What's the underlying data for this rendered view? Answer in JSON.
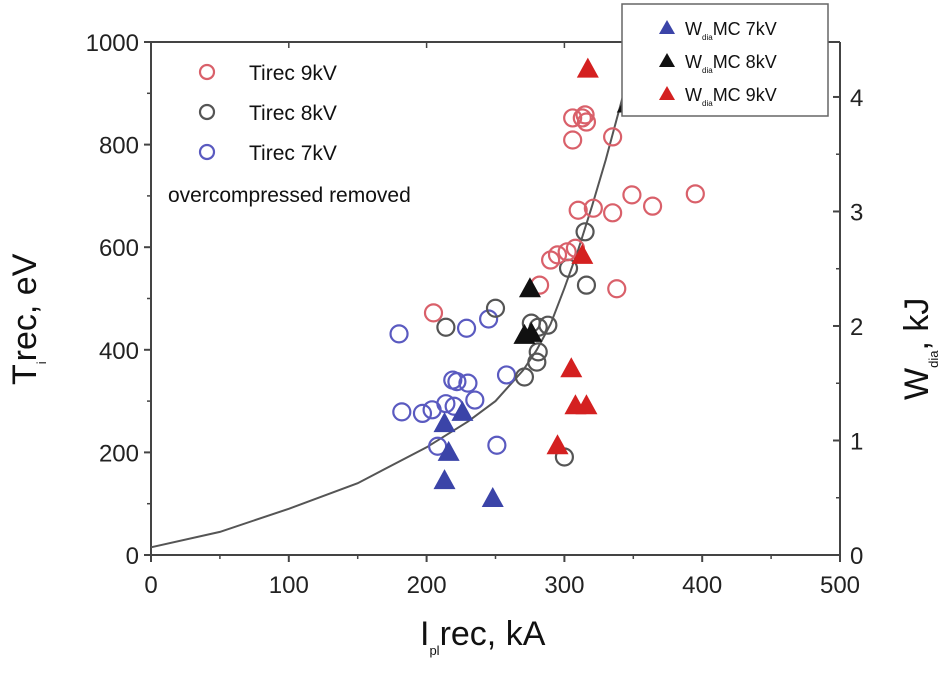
{
  "chart_data": {
    "type": "scatter",
    "xlabel": "I",
    "xlabel_sub": "pl",
    "xlabel_rest": "rec, kA",
    "ylabel": "T",
    "ylabel_sub": "i",
    "ylabel_rest": "rec, eV",
    "y2label": "W",
    "y2label_sub": "dia",
    "y2label_rest": ", kJ",
    "xlim": [
      0,
      500
    ],
    "ylim": [
      0,
      1000
    ],
    "y2lim": [
      0,
      4.48
    ],
    "xticks": [
      0,
      100,
      200,
      300,
      400,
      500
    ],
    "yticks": [
      0,
      200,
      400,
      600,
      800,
      1000
    ],
    "y2ticks": [
      0,
      1,
      2,
      3,
      4
    ],
    "grid": false,
    "legend_left": {
      "placement": "top-left",
      "entries": [
        {
          "label": "Tirec 9kV",
          "marker": "open-circle",
          "color": "#d9606a"
        },
        {
          "label": "Tirec 8kV",
          "marker": "open-circle",
          "color": "#555555"
        },
        {
          "label": "Tirec 7kV",
          "marker": "open-circle",
          "color": "#5a5ac0"
        }
      ],
      "note": "overcompressed removed"
    },
    "legend_right": {
      "placement": "top-right",
      "entries": [
        {
          "label_pre": "W",
          "label_sub": "dia",
          "label_post": "MC 7kV",
          "marker": "filled-triangle",
          "color": "#3b44a8"
        },
        {
          "label_pre": "W",
          "label_sub": "dia",
          "label_post": "MC 8kV",
          "marker": "filled-triangle",
          "color": "#111111"
        },
        {
          "label_pre": "W",
          "label_sub": "dia",
          "label_post": "MC 9kV",
          "marker": "filled-triangle",
          "color": "#d42020"
        }
      ]
    },
    "series": [
      {
        "name": "Tirec 7kV",
        "marker": "open-circle",
        "color": "#5a5ac0",
        "axis": "left",
        "points": [
          [
            180,
            431
          ],
          [
            182,
            279
          ],
          [
            197,
            276
          ],
          [
            204,
            283
          ],
          [
            208,
            212
          ],
          [
            219,
            341
          ],
          [
            222,
            338
          ],
          [
            230,
            335
          ],
          [
            235,
            302
          ],
          [
            229,
            442
          ],
          [
            245,
            460
          ],
          [
            251,
            214
          ],
          [
            258,
            351
          ],
          [
            220,
            290
          ],
          [
            214,
            295
          ]
        ]
      },
      {
        "name": "Tirec 8kV",
        "marker": "open-circle",
        "color": "#555555",
        "axis": "left",
        "points": [
          [
            214,
            444
          ],
          [
            250,
            481
          ],
          [
            271,
            347
          ],
          [
            276,
            452
          ],
          [
            280,
            376
          ],
          [
            281,
            396
          ],
          [
            281,
            444
          ],
          [
            288,
            448
          ],
          [
            300,
            191
          ],
          [
            303,
            559
          ],
          [
            315,
            630
          ],
          [
            316,
            526
          ]
        ]
      },
      {
        "name": "Tirec 9kV",
        "marker": "open-circle",
        "color": "#d9606a",
        "axis": "left",
        "points": [
          [
            205,
            472
          ],
          [
            282,
            526
          ],
          [
            290,
            575
          ],
          [
            295,
            585
          ],
          [
            302,
            591
          ],
          [
            308,
            598
          ],
          [
            306,
            809
          ],
          [
            306,
            852
          ],
          [
            313,
            852
          ],
          [
            315,
            858
          ],
          [
            316,
            844
          ],
          [
            310,
            672
          ],
          [
            321,
            676
          ],
          [
            335,
            815
          ],
          [
            335,
            667
          ],
          [
            338,
            519
          ],
          [
            349,
            702
          ],
          [
            364,
            680
          ],
          [
            395,
            704
          ]
        ]
      },
      {
        "name": "WdiaMC 7kV",
        "marker": "filled-triangle",
        "color": "#3b44a8",
        "axis": "left",
        "points": [
          [
            213,
            257
          ],
          [
            226,
            279
          ],
          [
            216,
            201
          ],
          [
            213,
            146
          ],
          [
            248,
            111
          ]
        ]
      },
      {
        "name": "WdiaMC 8kV",
        "marker": "filled-triangle",
        "color": "#111111",
        "axis": "left",
        "points": [
          [
            275,
            520
          ],
          [
            271,
            429
          ],
          [
            276,
            433
          ],
          [
            346,
            880
          ]
        ]
      },
      {
        "name": "WdiaMC 9kV",
        "marker": "filled-triangle",
        "color": "#d42020",
        "axis": "left",
        "points": [
          [
            317,
            948
          ],
          [
            313,
            585
          ],
          [
            305,
            364
          ],
          [
            308,
            292
          ],
          [
            316,
            292
          ],
          [
            295,
            214
          ]
        ]
      }
    ],
    "fit_curve": {
      "name": "fit",
      "color": "#555555",
      "points": [
        [
          0,
          15
        ],
        [
          50,
          45
        ],
        [
          100,
          90
        ],
        [
          150,
          140
        ],
        [
          200,
          210
        ],
        [
          230,
          260
        ],
        [
          250,
          300
        ],
        [
          270,
          360
        ],
        [
          280,
          400
        ],
        [
          290,
          450
        ],
        [
          300,
          520
        ],
        [
          310,
          595
        ],
        [
          320,
          680
        ],
        [
          330,
          770
        ],
        [
          340,
          870
        ],
        [
          348,
          950
        ]
      ]
    }
  }
}
